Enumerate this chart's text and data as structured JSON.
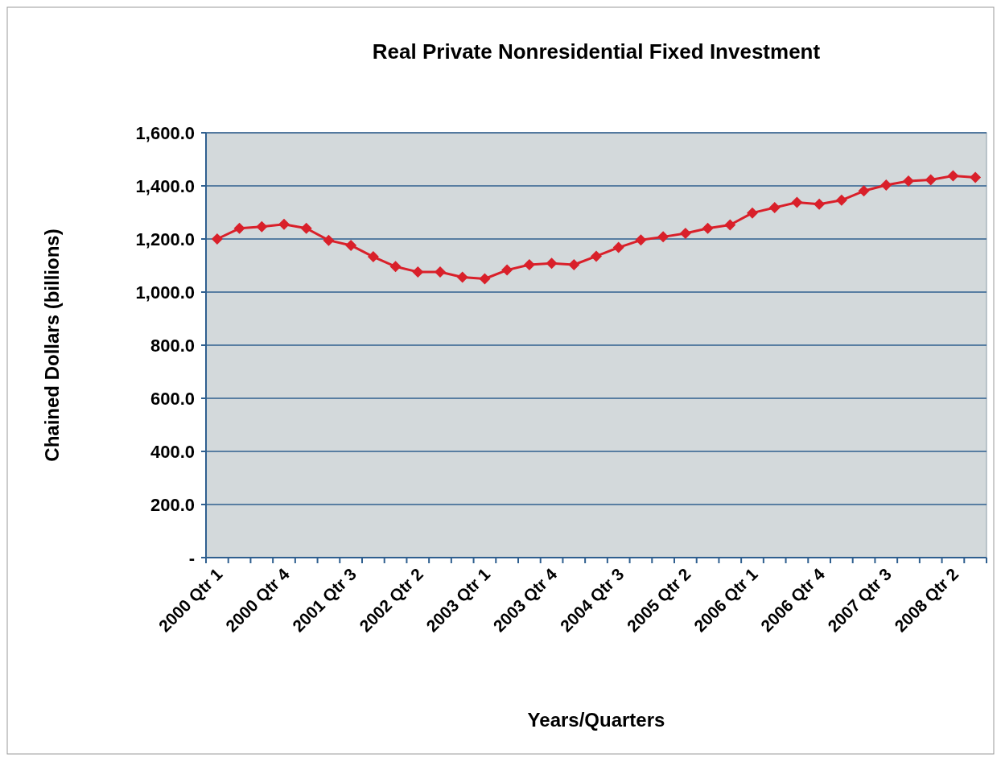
{
  "chart_data": {
    "type": "line",
    "title": "Real Private Nonresidential Fixed Investment",
    "xlabel": "Years/Quarters",
    "ylabel": "Chained Dollars (billions)",
    "categories": [
      "2000 Qtr 1",
      null,
      null,
      "2000 Qtr 4",
      null,
      null,
      "2001 Qtr 3",
      null,
      null,
      "2002 Qtr 2",
      null,
      null,
      "2003 Qtr 1",
      null,
      null,
      "2003 Qtr 4",
      null,
      null,
      "2004 Qtr 3",
      null,
      null,
      "2005 Qtr 2",
      null,
      null,
      "2006 Qtr 1",
      null,
      null,
      "2006 Qtr 4",
      null,
      null,
      "2007 Qtr 3",
      null,
      null,
      "2008 Qtr 2",
      null
    ],
    "series": [
      {
        "color": "#d9202a",
        "values": [
          1200,
          1240,
          1246,
          1255,
          1240,
          1195,
          1176,
          1133,
          1096,
          1076,
          1076,
          1056,
          1050,
          1083,
          1103,
          1108,
          1103,
          1135,
          1168,
          1196,
          1208,
          1221,
          1240,
          1253,
          1298,
          1318,
          1338,
          1331,
          1346,
          1381,
          1403,
          1418,
          1423,
          1438,
          1432
        ]
      }
    ],
    "ylim": [
      0,
      1600
    ],
    "yticks": [
      {
        "value": 0,
        "label": "-"
      },
      {
        "value": 200,
        "label": "200.0"
      },
      {
        "value": 400,
        "label": "400.0"
      },
      {
        "value": 600,
        "label": "600.0"
      },
      {
        "value": 800,
        "label": "800.0"
      },
      {
        "value": 1000,
        "label": "1,000.0"
      },
      {
        "value": 1200,
        "label": "1,200.0"
      },
      {
        "value": 1400,
        "label": "1,400.0"
      },
      {
        "value": 1600,
        "label": "1,600.0"
      }
    ],
    "grid": "y",
    "marker": "diamond",
    "line_style": "solid"
  }
}
